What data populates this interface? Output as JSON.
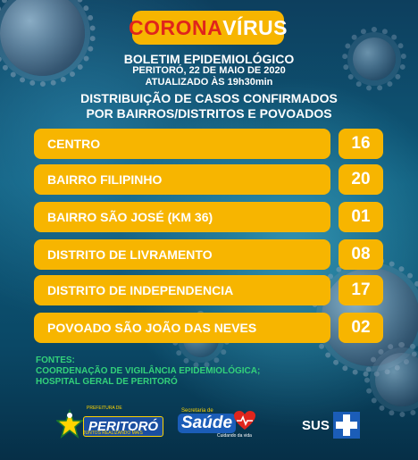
{
  "header": {
    "badge_part1": "CORONA",
    "badge_part2": "VÍRUS",
    "title": "BOLETIM EPIDEMIOLÓGICO",
    "location_date": "PERITORÓ, 22 DE MAIO DE 2020",
    "updated": "ATUALIZADO ÀS 19h30min",
    "subtitle_line1": "DISTRIBUIÇÃO DE CASOS CONFIRMADOS",
    "subtitle_line2": "POR BAIRROS/DISTRITOS E POVOADOS"
  },
  "rows": [
    {
      "name": "CENTRO",
      "count": "16"
    },
    {
      "name": "BAIRRO FILIPINHO",
      "count": "20"
    },
    {
      "name": "BAIRRO SÃO JOSÉ (KM 36)",
      "count": "01"
    },
    {
      "name": "DISTRITO DE LIVRAMENTO",
      "count": "08"
    },
    {
      "name": "DISTRITO DE INDEPENDENCIA",
      "count": "17"
    },
    {
      "name": "POVOADO SÃO JOÃO DAS NEVES",
      "count": "02"
    }
  ],
  "sources": {
    "label": "FONTES:",
    "line1": "COORDENAÇÃO DE VIGILÂNCIA EPIDEMIOLÓGICA;",
    "line2": "HOSPITAL GERAL DE PERITORÓ"
  },
  "logos": {
    "peritoro_top": "PREFEITURA DE",
    "peritoro_name": "PERITORÓ",
    "peritoro_sub": "JUNTOS REALIZANDO MAIS",
    "saude_top": "Secretaria de",
    "saude_name": "Saúde",
    "saude_tag": "Cuidando da vida",
    "sus_name": "SUS"
  },
  "colors": {
    "accent_yellow": "#f7b500",
    "badge_red": "#e0251c",
    "sources_green": "#33d17a"
  }
}
